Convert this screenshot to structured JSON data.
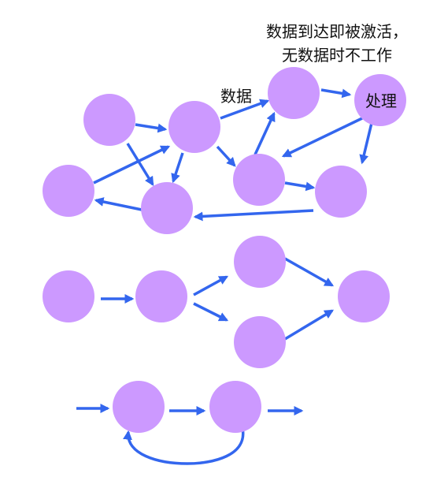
{
  "colors": {
    "node": "#cc99ff",
    "edge": "#3366ee",
    "text": "#111111"
  },
  "labels": {
    "annotation_line1": "数据到达即被激活，",
    "annotation_line2": "无数据时不工作",
    "data_label": "数据",
    "process_label": "处理"
  }
}
